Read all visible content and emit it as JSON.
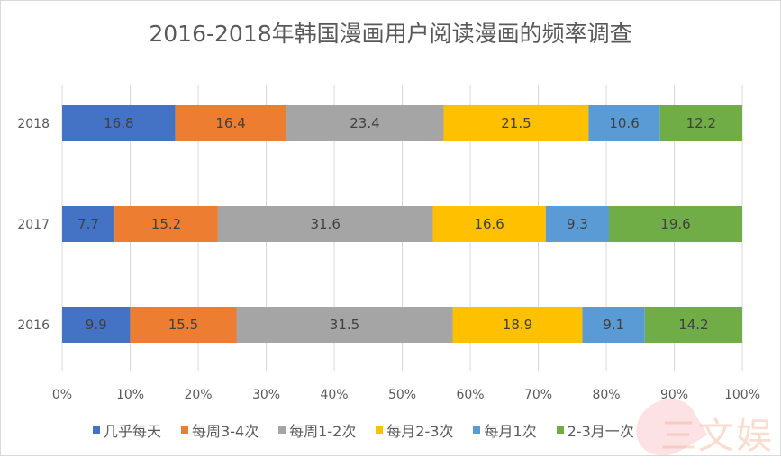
{
  "chart_data": {
    "type": "bar",
    "orientation": "horizontal",
    "stacked": "percent",
    "title": "2016-2018年韩国漫画用户阅读漫画的频率调查",
    "categories": [
      "2018",
      "2017",
      "2016"
    ],
    "series": [
      {
        "name": "几乎每天",
        "color": "#4472C4",
        "values": [
          16.8,
          7.7,
          9.9
        ]
      },
      {
        "name": "每周3-4次",
        "color": "#ED7D31",
        "values": [
          16.4,
          15.2,
          15.5
        ]
      },
      {
        "name": "每周1-2次",
        "color": "#A5A5A5",
        "values": [
          23.4,
          31.6,
          31.5
        ]
      },
      {
        "name": "每月2-3次",
        "color": "#FFC000",
        "values": [
          21.5,
          16.6,
          18.9
        ]
      },
      {
        "name": "每月1次",
        "color": "#5B9BD5",
        "values": [
          10.6,
          9.3,
          9.1
        ]
      },
      {
        "name": "2-3月一次",
        "color": "#70AD47",
        "values": [
          12.2,
          19.6,
          14.2
        ]
      }
    ],
    "x_ticks": [
      "0%",
      "10%",
      "20%",
      "30%",
      "40%",
      "50%",
      "60%",
      "70%",
      "80%",
      "90%",
      "100%"
    ],
    "xlim": [
      0,
      100
    ],
    "grid": true,
    "legend_position": "bottom"
  },
  "watermark": "三文娱"
}
